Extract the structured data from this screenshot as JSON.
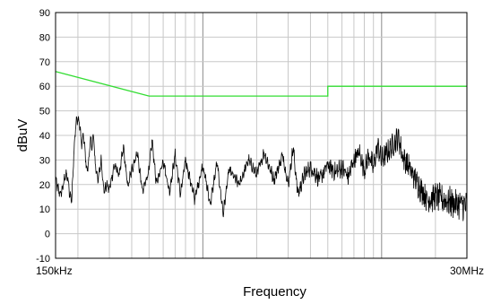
{
  "chart_data": {
    "type": "line",
    "title": "",
    "xlabel": "Frequency",
    "ylabel": "dBuV",
    "x_scale": "log",
    "x_unit": "MHz",
    "xlim": [
      0.15,
      30
    ],
    "ylim": [
      -10,
      90
    ],
    "y_ticks": [
      -10,
      0,
      10,
      20,
      30,
      40,
      50,
      60,
      70,
      80,
      90
    ],
    "x_tick_labels": [
      {
        "value": 0.15,
        "label": "150kHz"
      },
      {
        "value": 30,
        "label": "30MHz"
      }
    ],
    "grid": true,
    "series": [
      {
        "role": "limit",
        "color": "#33dd33",
        "x": [
          0.15,
          0.5,
          0.5,
          5,
          5,
          30
        ],
        "y": [
          66,
          56,
          56,
          56,
          60,
          60
        ]
      },
      {
        "role": "measurement",
        "color": "#000000",
        "anchors": [
          [
            0.15,
            22
          ],
          [
            0.155,
            18
          ],
          [
            0.16,
            16
          ],
          [
            0.165,
            19
          ],
          [
            0.17,
            24
          ],
          [
            0.175,
            23
          ],
          [
            0.18,
            16
          ],
          [
            0.185,
            14
          ],
          [
            0.19,
            34
          ],
          [
            0.195,
            45
          ],
          [
            0.2,
            47
          ],
          [
            0.205,
            44
          ],
          [
            0.21,
            36
          ],
          [
            0.215,
            40
          ],
          [
            0.22,
            32
          ],
          [
            0.225,
            25
          ],
          [
            0.23,
            30
          ],
          [
            0.235,
            38
          ],
          [
            0.24,
            36
          ],
          [
            0.245,
            40
          ],
          [
            0.25,
            28
          ],
          [
            0.26,
            22
          ],
          [
            0.27,
            30
          ],
          [
            0.28,
            17
          ],
          [
            0.29,
            20
          ],
          [
            0.3,
            18
          ],
          [
            0.32,
            28
          ],
          [
            0.34,
            24
          ],
          [
            0.36,
            35
          ],
          [
            0.38,
            19
          ],
          [
            0.4,
            26
          ],
          [
            0.43,
            33
          ],
          [
            0.46,
            17
          ],
          [
            0.5,
            26
          ],
          [
            0.52,
            38
          ],
          [
            0.55,
            20
          ],
          [
            0.6,
            30
          ],
          [
            0.65,
            17
          ],
          [
            0.7,
            32
          ],
          [
            0.75,
            16
          ],
          [
            0.8,
            30
          ],
          [
            0.9,
            14
          ],
          [
            1.0,
            28
          ],
          [
            1.1,
            12
          ],
          [
            1.2,
            29
          ],
          [
            1.3,
            8
          ],
          [
            1.4,
            26
          ],
          [
            1.6,
            20
          ],
          [
            1.8,
            30
          ],
          [
            2.0,
            24
          ],
          [
            2.2,
            33
          ],
          [
            2.5,
            22
          ],
          [
            2.8,
            32
          ],
          [
            3.0,
            20
          ],
          [
            3.2,
            35
          ],
          [
            3.4,
            16
          ],
          [
            3.7,
            24
          ],
          [
            4.0,
            27
          ],
          [
            4.5,
            22
          ],
          [
            5.0,
            28
          ],
          [
            5.5,
            25
          ],
          [
            6.0,
            27
          ],
          [
            6.5,
            23
          ],
          [
            7.0,
            30
          ],
          [
            7.5,
            33
          ],
          [
            8.0,
            26
          ],
          [
            8.5,
            32
          ],
          [
            9.0,
            27
          ],
          [
            9.5,
            36
          ],
          [
            10.0,
            30
          ],
          [
            11.0,
            34
          ],
          [
            12.0,
            38
          ],
          [
            12.5,
            39
          ],
          [
            13.0,
            32
          ],
          [
            14.0,
            28
          ],
          [
            15.0,
            24
          ],
          [
            16.0,
            20
          ],
          [
            17.0,
            17
          ],
          [
            18.0,
            14
          ],
          [
            20.0,
            15
          ],
          [
            22.0,
            14
          ],
          [
            24.0,
            13
          ],
          [
            26.0,
            12
          ],
          [
            28.0,
            12
          ],
          [
            30.0,
            11
          ]
        ],
        "noise_amplitude_db": 3.5
      }
    ]
  }
}
